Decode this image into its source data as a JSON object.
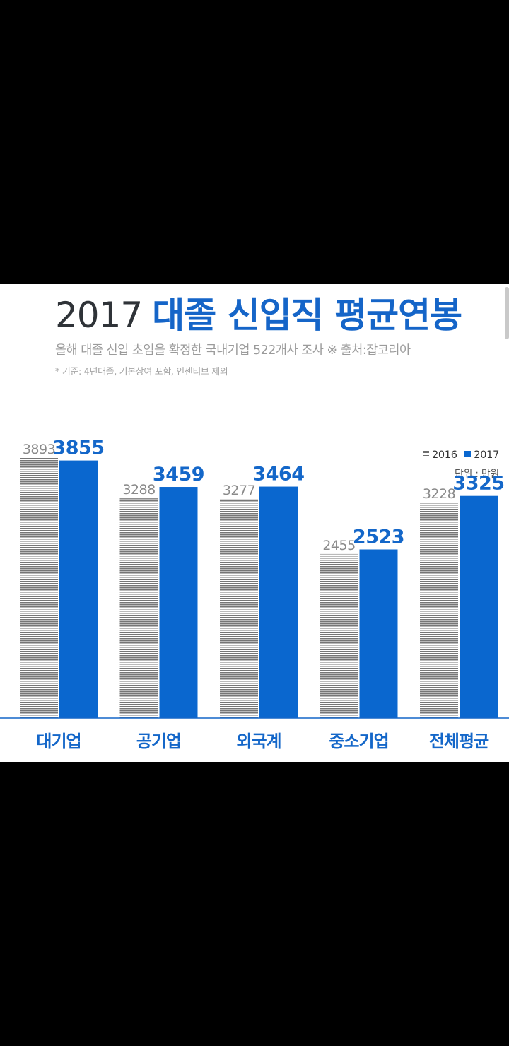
{
  "title": {
    "year": "2017",
    "main": "대졸 신입직 평균연봉"
  },
  "subtitle": "올해 대졸 신입 초임을 확정한 국내기업 522개사 조사  ※ 출처:잡코리아",
  "footnote": "* 기준: 4년대졸, 기본상여 포함, 인센티브 제외",
  "legend": {
    "label_2016": "2016",
    "label_2017": "2017"
  },
  "unit": "단위 : 만원",
  "colors": {
    "series_2016": "#7a7a7a",
    "series_2017": "#0a67cf",
    "accent": "#1565c8",
    "background": "#ffffff"
  },
  "chart_data": {
    "type": "bar",
    "title": "2017 대졸 신입직 평균연봉",
    "unit": "단위 : 만원",
    "categories": [
      "대기업",
      "공기업",
      "외국계",
      "중소기업",
      "전체평균"
    ],
    "series": [
      {
        "name": "2016",
        "values": [
          3893,
          3288,
          3277,
          2455,
          3228
        ]
      },
      {
        "name": "2017",
        "values": [
          3855,
          3459,
          3464,
          2523,
          3325
        ]
      }
    ],
    "legend_position": "top-right",
    "grid": false,
    "axis_visible": false
  }
}
